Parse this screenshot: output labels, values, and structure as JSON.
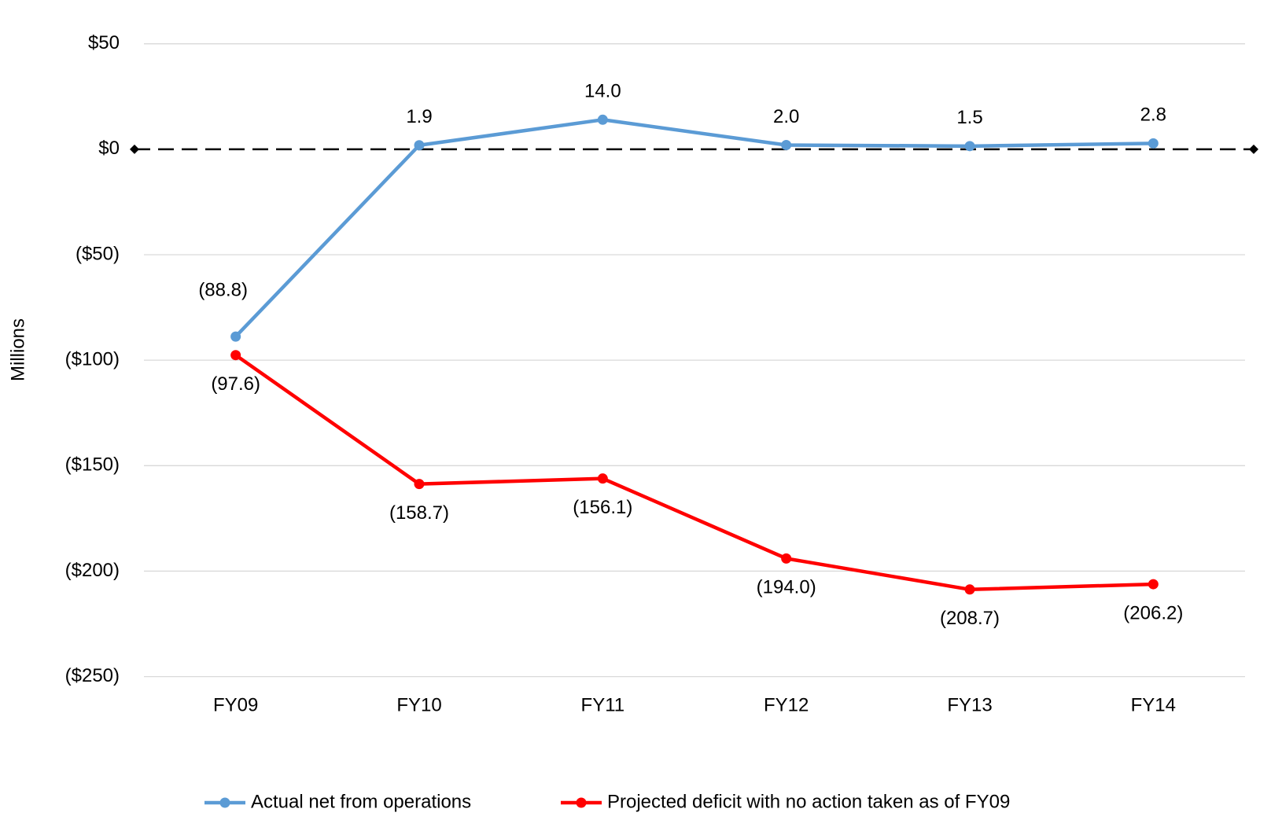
{
  "chart_data": {
    "type": "line",
    "y_label": "Millions",
    "categories": [
      "FY09",
      "FY10",
      "FY11",
      "FY12",
      "FY13",
      "FY14"
    ],
    "series": [
      {
        "name": "Actual net from operations",
        "color": "#5b9bd5",
        "values": [
          -88.8,
          1.9,
          14.0,
          2.0,
          1.5,
          2.8
        ],
        "value_labels": [
          "(88.8)",
          "1.9",
          "14.0",
          "2.0",
          "1.5",
          "2.8"
        ]
      },
      {
        "name": "Projected deficit with no action taken as of FY09",
        "color": "#ff0000",
        "values": [
          -97.6,
          -158.7,
          -156.1,
          -194.0,
          -208.7,
          -206.2
        ],
        "value_labels": [
          "(97.6)",
          "(158.7)",
          "(156.1)",
          "(194.0)",
          "(208.7)",
          "(206.2)"
        ]
      }
    ],
    "ylim": [
      -250,
      50
    ],
    "yticks": [
      {
        "value": 50,
        "label": "$50"
      },
      {
        "value": 0,
        "label": "$0"
      },
      {
        "value": -50,
        "label": "($50)"
      },
      {
        "value": -100,
        "label": "($100)"
      },
      {
        "value": -150,
        "label": "($150)"
      },
      {
        "value": -200,
        "label": "($200)"
      },
      {
        "value": -250,
        "label": "($250)"
      }
    ],
    "grid": true,
    "legend": "bottom"
  }
}
